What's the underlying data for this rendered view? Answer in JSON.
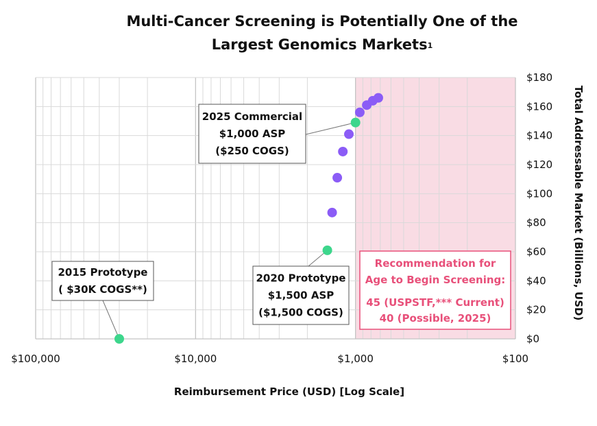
{
  "chart_data": {
    "type": "scatter",
    "title_line1": "Multi-Cancer Screening is Potentially One of the",
    "title_line2": "Largest Genomics Markets",
    "title_footnote": "1",
    "xlabel": "Reimbursement Price (USD) [Log Scale]",
    "ylabel": "Total Addressable Market (Billions, USD)",
    "x_scale": "log",
    "x_reversed": true,
    "xlim": [
      100000,
      100
    ],
    "ylim": [
      0,
      180
    ],
    "x_ticks": [
      100000,
      10000,
      1000,
      100
    ],
    "x_tick_labels": [
      "$100,000",
      "$10,000",
      "$1,000",
      "$100"
    ],
    "y_ticks": [
      0,
      20,
      40,
      60,
      80,
      100,
      120,
      140,
      160,
      180
    ],
    "y_tick_labels": [
      "$0",
      "$20",
      "$40",
      "$60",
      "$80",
      "$100",
      "$120",
      "$140",
      "$160",
      "$180"
    ],
    "y_axis_side": "right",
    "grid": true,
    "shaded_region": {
      "x_from": 1000,
      "x_to": 100,
      "color": "#f9dce4"
    },
    "colors": {
      "milestone": "#3dd68c",
      "projection": "#8b5cf6",
      "highlight": "#e8507a",
      "grid": "#d9d9d9"
    },
    "series": [
      {
        "group": "milestone",
        "points": [
          {
            "x": 30000,
            "y": 0
          },
          {
            "x": 1500,
            "y": 61
          },
          {
            "x": 1000,
            "y": 149
          }
        ]
      },
      {
        "group": "projection",
        "points": [
          {
            "x": 1400,
            "y": 87
          },
          {
            "x": 1300,
            "y": 111
          },
          {
            "x": 1200,
            "y": 129
          },
          {
            "x": 1100,
            "y": 141
          },
          {
            "x": 940,
            "y": 156
          },
          {
            "x": 850,
            "y": 161
          },
          {
            "x": 780,
            "y": 164
          },
          {
            "x": 720,
            "y": 166
          }
        ]
      }
    ],
    "annotations": [
      {
        "id": "2015",
        "lines": [
          "2015 Prototype",
          "( $30K COGS**)"
        ],
        "target": {
          "x": 30000,
          "y": 0
        }
      },
      {
        "id": "2020",
        "lines": [
          "2020 Prototype",
          "$1,500 ASP",
          "($1,500 COGS)"
        ],
        "target": {
          "x": 1500,
          "y": 61
        }
      },
      {
        "id": "2025",
        "lines": [
          "2025 Commercial",
          "$1,000 ASP",
          "($250 COGS)"
        ],
        "target": {
          "x": 1000,
          "y": 149
        }
      }
    ],
    "recommendation_box": {
      "lines": [
        "Recommendation for",
        "Age to Begin Screening:",
        "",
        "45 (USPSTF,*** Current)",
        "40 (Possible, 2025)"
      ]
    }
  }
}
